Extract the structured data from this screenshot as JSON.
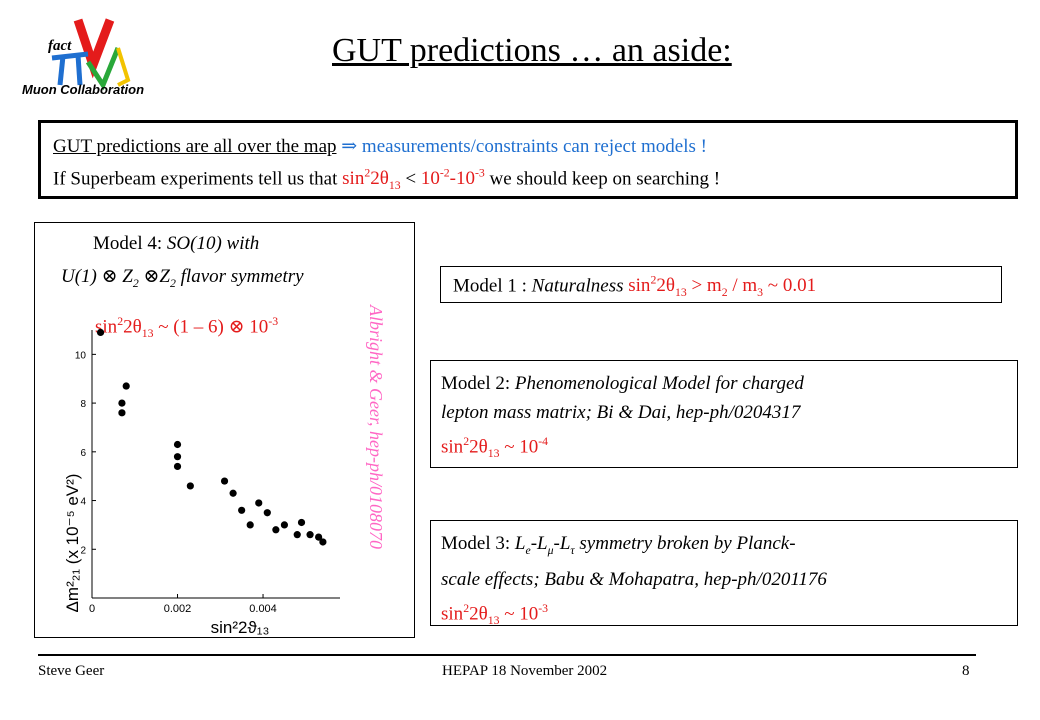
{
  "logo": {
    "lettering": "fact",
    "caption": "Muon Collaboration"
  },
  "title": "GUT predictions … an aside:",
  "intro": {
    "line1_underlined": "GUT  predictions are all over the map",
    "line1_arrow": "⇒",
    "line1_rest": "measurements/constraints can reject models !",
    "line2_prefix": "If  Superbeam experiments tell us that",
    "line2_sin": "sin",
    "line2_2": "2",
    "line2_theta": "2θ",
    "line2_sub13": "13",
    "line2_lt": " < ",
    "line2_10a": "10",
    "line2_exp_a": "-2",
    "line2_dash": "-",
    "line2_10b": "10",
    "line2_exp_b": "-3",
    "line2_suffix": "  we should keep on searching !"
  },
  "model4": {
    "line1_prefix": "Model 4:  ",
    "line1_italic": "SO(10)  with",
    "line2": "U(1)  ⊗ Z",
    "line2_sub": "2",
    "line2_b": " ⊗Z",
    "line2_sub2": "2",
    "line2_c": "  flavor symmetry",
    "pred_sin": "sin",
    "pred_2": "2",
    "pred_theta": "2θ",
    "pred_13": "13",
    "pred_rest": " ~ (1 – 6)  ⊗ 10",
    "pred_exp": "-3",
    "side_ref": "Albright & Geer, hep-ph/0108070"
  },
  "model1": {
    "prefix": "Model 1 :  ",
    "italic": "Naturalness",
    "sin": "sin",
    "sup2": "2",
    "theta": "2θ",
    "sub13": "13",
    "rest": " > m",
    "m2sub": "2",
    "slash": " / m",
    "m3sub": "3",
    "approx": "  ~  0.01"
  },
  "model2": {
    "prefix": "Model 2: ",
    "italic1": "Phenomenological  Model for charged",
    "italic2": "lepton mass matrix; Bi & Dai,  hep-ph/0204317",
    "pred_sin": "sin",
    "pred_2": "2",
    "pred_theta": "2θ",
    "pred_13": "13",
    "pred_rest": " ~ 10",
    "pred_exp": "-4"
  },
  "model3": {
    "prefix": "Model 3:  ",
    "l_e": "L",
    "e_sub": "e",
    "l_mu": "-L",
    "mu_sub": "μ",
    "l_tau": "-L",
    "tau_sub": "τ",
    "rest1": " symmetry broken by Planck-",
    "line2": "scale effects;  Babu & Mohapatra, hep-ph/0201176",
    "pred_sin": "sin",
    "pred_2": "2",
    "pred_theta": "2θ",
    "pred_13": "13",
    "pred_rest": "  ~  10",
    "pred_exp": "-3"
  },
  "chart_data": {
    "type": "scatter",
    "xlabel": "sin²2ϑ₁₃",
    "ylabel": "Δm²₂₁  (x 10⁻⁵ eV²)",
    "xlim": [
      0,
      0.0058
    ],
    "ylim": [
      0,
      11
    ],
    "xticks": [
      "0",
      "0.002",
      "0.004"
    ],
    "yticks": [
      "2",
      "4",
      "6",
      "8",
      "10"
    ],
    "points": [
      [
        0.0002,
        10.9
      ],
      [
        0.0008,
        8.7
      ],
      [
        0.0007,
        8.0
      ],
      [
        0.0007,
        7.6
      ],
      [
        0.002,
        6.3
      ],
      [
        0.002,
        5.8
      ],
      [
        0.002,
        5.4
      ],
      [
        0.0023,
        4.6
      ],
      [
        0.0031,
        4.8
      ],
      [
        0.0033,
        4.3
      ],
      [
        0.0035,
        3.6
      ],
      [
        0.0037,
        3.0
      ],
      [
        0.0039,
        3.9
      ],
      [
        0.0041,
        3.5
      ],
      [
        0.0043,
        2.8
      ],
      [
        0.0045,
        3.0
      ],
      [
        0.0048,
        2.6
      ],
      [
        0.0049,
        3.1
      ],
      [
        0.0051,
        2.6
      ],
      [
        0.0053,
        2.5
      ],
      [
        0.0054,
        2.3
      ]
    ]
  },
  "footer": {
    "left": "Steve Geer",
    "center": "HEPAP   18 November 2002",
    "right": "8"
  }
}
